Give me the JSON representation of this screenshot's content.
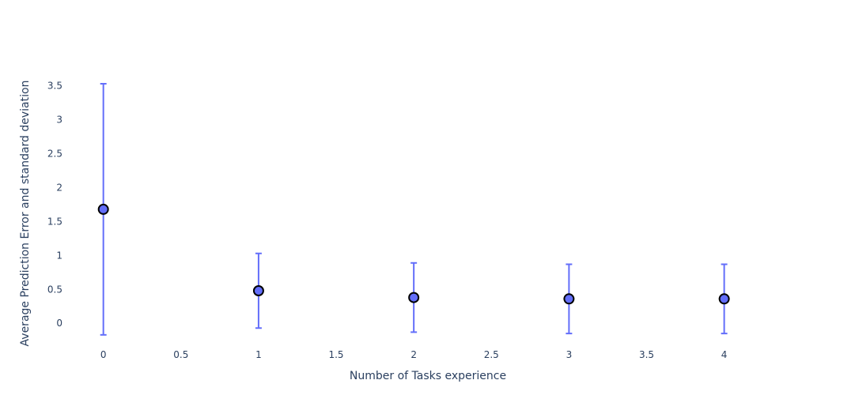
{
  "chart_data": {
    "type": "scatter",
    "title": "",
    "xlabel": "Number of Tasks experience",
    "ylabel": "Average Prediction Error and standard deviation",
    "x_ticks": [
      "0",
      "0.5",
      "1",
      "1.5",
      "2",
      "2.5",
      "3",
      "3.5",
      "4"
    ],
    "y_ticks": [
      "0",
      "0.5",
      "1",
      "1.5",
      "2",
      "2.5",
      "3",
      "3.5"
    ],
    "xlim": [
      -0.35,
      4.43
    ],
    "ylim": [
      -0.3,
      3.6
    ],
    "grid": false,
    "legend": false,
    "series": [
      {
        "x": [
          0,
          1,
          2,
          3,
          4
        ],
        "y": [
          1.68,
          0.48,
          0.38,
          0.36,
          0.36
        ],
        "error_y": [
          1.85,
          0.55,
          0.51,
          0.51,
          0.51
        ]
      }
    ],
    "colors": {
      "marker_fill": "#636efa",
      "marker_edge": "#000000",
      "error_bar": "#636efa"
    }
  }
}
